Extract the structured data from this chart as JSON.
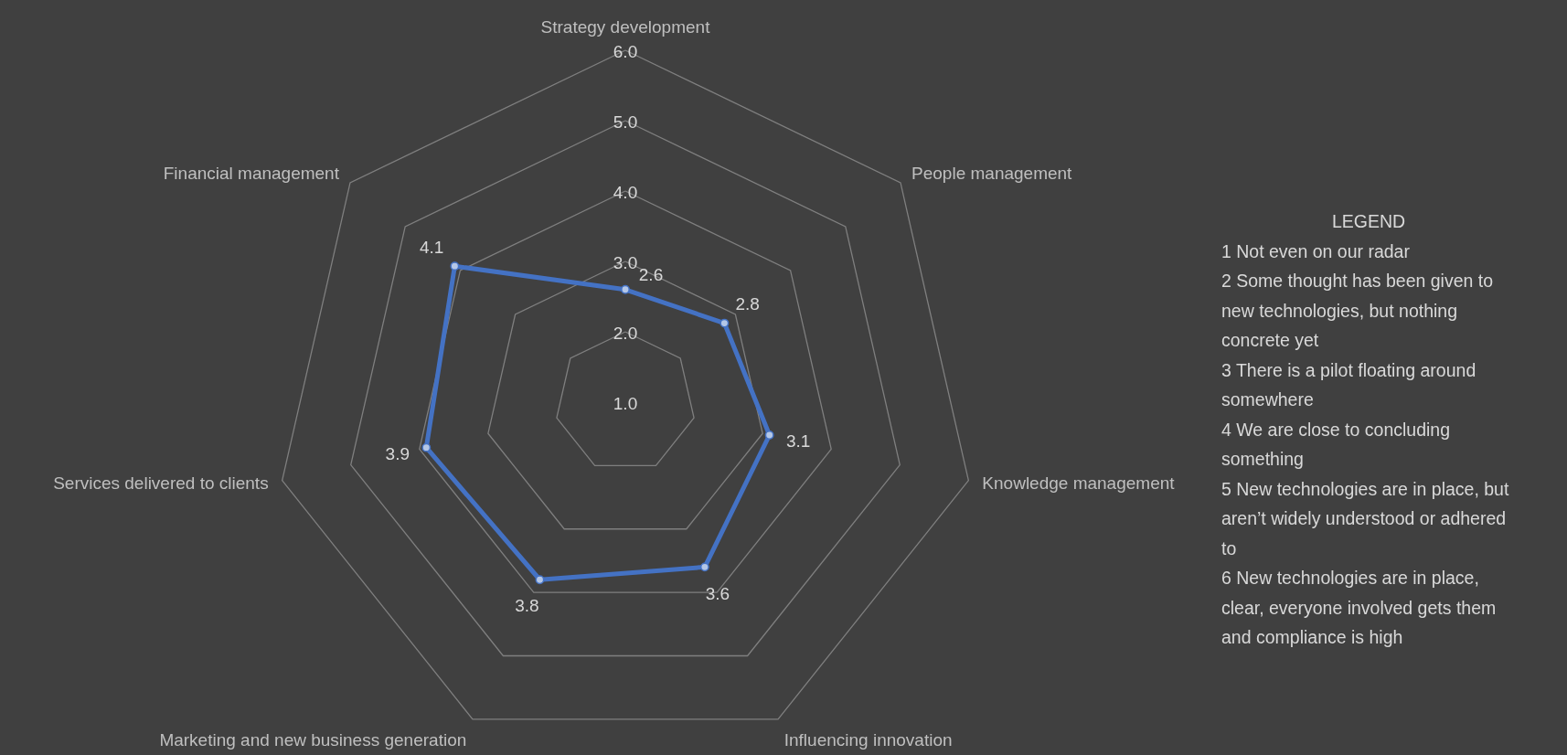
{
  "chart_data": {
    "type": "radar",
    "categories": [
      "Strategy development",
      "People management",
      "Knowledge management",
      "Influencing innovation",
      "Marketing and new business generation",
      "Services delivered to clients",
      "Financial management"
    ],
    "series": [
      {
        "color": "#4472c4",
        "values": [
          2.6,
          2.8,
          3.1,
          3.6,
          3.8,
          3.9,
          4.1
        ]
      }
    ],
    "ylim": [
      1,
      6
    ],
    "yticks": [
      {
        "value": 1,
        "label": "1.0"
      },
      {
        "value": 2,
        "label": "2.0"
      },
      {
        "value": 3,
        "label": "3.0"
      },
      {
        "value": 4,
        "label": "4.0"
      },
      {
        "value": 5,
        "label": "5.0"
      },
      {
        "value": 6,
        "label": "6.0"
      }
    ],
    "grid": true,
    "marker": "circle",
    "data_labels": true,
    "annotations": [
      "LEGEND",
      "1 Not even on our radar",
      "2 Some thought has been given to new technologies, but nothing concrete yet",
      "3 There is a pilot floating around somewhere",
      "4 We are close to concluding something",
      "5 New technologies are in place, but aren’t widely understood or adhered to",
      "6 New technologies are in place, clear, everyone involved gets them and compliance is high"
    ]
  }
}
